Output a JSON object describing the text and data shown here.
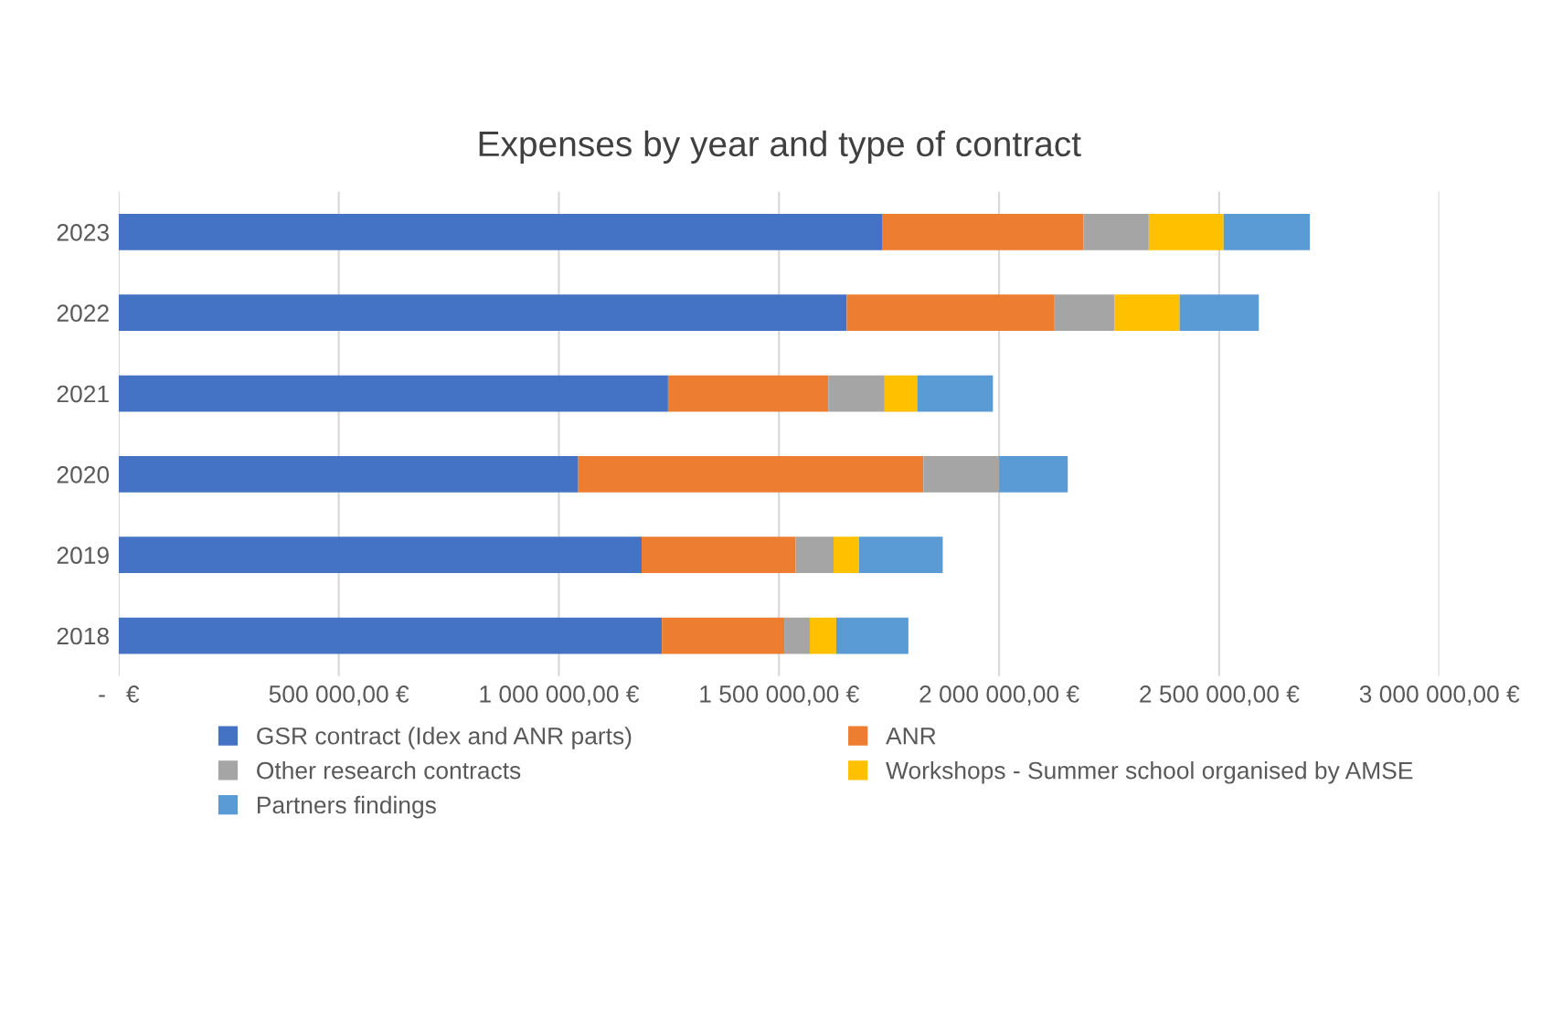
{
  "chart_data": {
    "type": "bar",
    "orientation": "horizontal",
    "stacked": true,
    "title": "Expenses by year and type of contract",
    "categories": [
      "2023",
      "2022",
      "2021",
      "2020",
      "2019",
      "2018"
    ],
    "series": [
      {
        "name": "GSR contract (Idex and ANR parts)",
        "color": "#4472c4",
        "values": [
          1734000,
          1654000,
          1248000,
          1044000,
          1188000,
          1234000
        ]
      },
      {
        "name": "ANR",
        "color": "#ed7d31",
        "values": [
          458000,
          472000,
          364000,
          784000,
          350000,
          278000
        ]
      },
      {
        "name": "Other research contracts",
        "color": "#a5a5a5",
        "values": [
          148000,
          136000,
          128000,
          172000,
          86000,
          58000
        ]
      },
      {
        "name": "Workshops - Summer school organised by AMSE",
        "color": "#ffc000",
        "values": [
          170000,
          148000,
          74000,
          null,
          58000,
          60000
        ]
      },
      {
        "name": "Partners findings",
        "color": "#5b9bd5",
        "values": [
          196000,
          180000,
          172000,
          156000,
          190000,
          164000
        ]
      }
    ],
    "xlim": [
      0,
      3000000
    ],
    "xticks": [
      {
        "value": 0,
        "label": "-   €"
      },
      {
        "value": 500000,
        "label": "500 000,00 €"
      },
      {
        "value": 1000000,
        "label": "1 000 000,00 €"
      },
      {
        "value": 1500000,
        "label": "1 500 000,00 €"
      },
      {
        "value": 2000000,
        "label": "2 000 000,00 €"
      },
      {
        "value": 2500000,
        "label": "2 500 000,00 €"
      },
      {
        "value": 3000000,
        "label": "3 000 000,00 €"
      }
    ],
    "grid": "x",
    "legend": "bottom"
  }
}
